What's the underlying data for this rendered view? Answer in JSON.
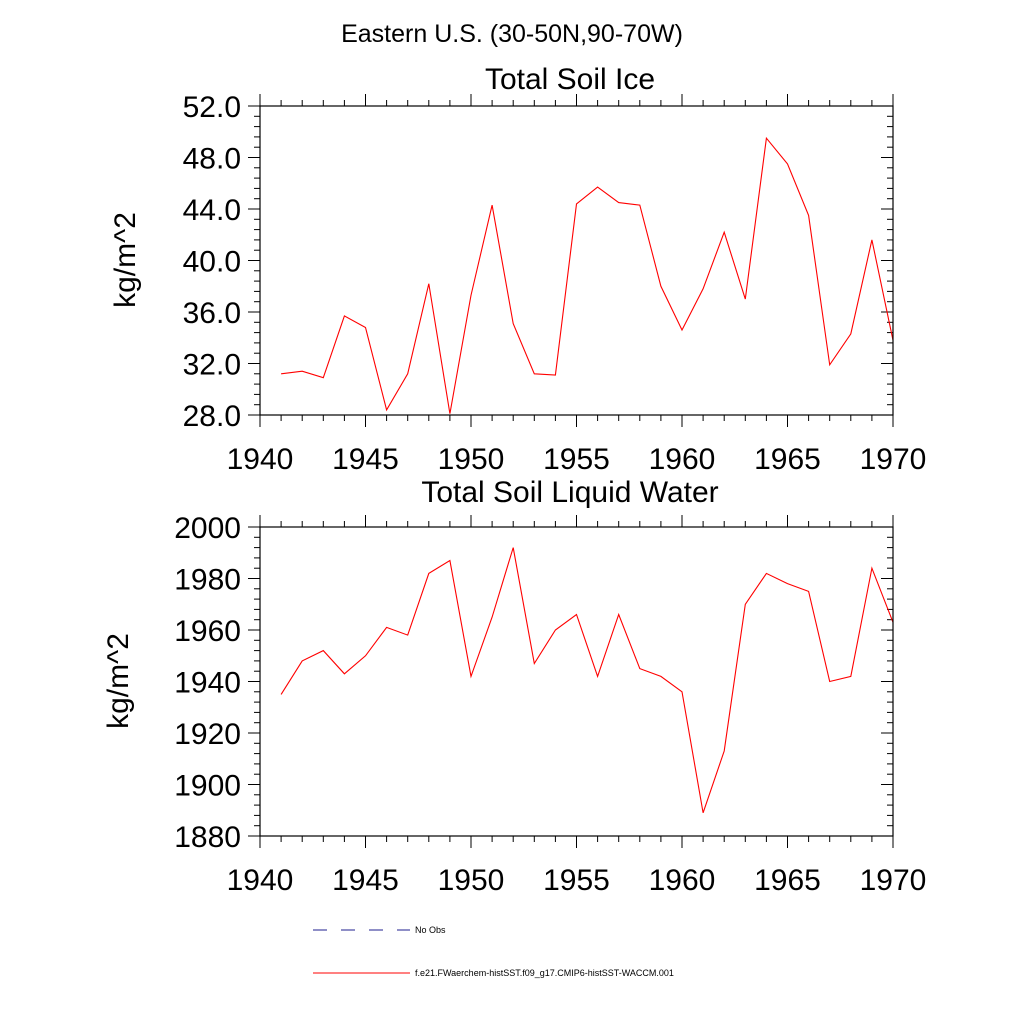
{
  "figure": {
    "title": "Eastern U.S. (30-50N,90-70W)"
  },
  "legend": {
    "items": [
      {
        "label": "No Obs",
        "color": "#1f1f8f",
        "dash": "dashed"
      },
      {
        "label": "f.e21.FWaerchem-histSST.f09_g17.CMIP6-histSST-WACCM.001",
        "color": "#ff0000",
        "dash": "solid"
      }
    ]
  },
  "chart_data": [
    {
      "type": "line",
      "title": "Total Soil Ice",
      "xlabel": "",
      "ylabel": "kg/m^2",
      "xlim": [
        1940,
        1970
      ],
      "ylim": [
        28,
        52
      ],
      "x_ticks": [
        1940,
        1945,
        1950,
        1955,
        1960,
        1965,
        1970
      ],
      "y_ticks": [
        "28.0",
        "32.0",
        "36.0",
        "40.0",
        "44.0",
        "48.0",
        "52.0"
      ],
      "grid": false,
      "x": [
        1941,
        1942,
        1943,
        1944,
        1945,
        1946,
        1947,
        1948,
        1949,
        1950,
        1951,
        1952,
        1953,
        1954,
        1955,
        1956,
        1957,
        1958,
        1959,
        1960,
        1961,
        1962,
        1963,
        1964,
        1965,
        1966,
        1967,
        1968,
        1969,
        1970
      ],
      "series": [
        {
          "color": "#ff0000",
          "values": [
            31.2,
            31.4,
            30.9,
            35.7,
            34.8,
            28.4,
            31.2,
            38.2,
            28.1,
            37.3,
            44.3,
            35.1,
            31.2,
            31.1,
            44.4,
            45.7,
            44.5,
            44.3,
            38.0,
            34.6,
            37.8,
            42.2,
            37.0,
            49.5,
            47.5,
            43.5,
            31.9,
            34.3,
            41.6,
            33.8
          ]
        }
      ]
    },
    {
      "type": "line",
      "title": "Total Soil Liquid Water",
      "xlabel": "",
      "ylabel": "kg/m^2",
      "xlim": [
        1940,
        1970
      ],
      "ylim": [
        1880,
        2000
      ],
      "x_ticks": [
        1940,
        1945,
        1950,
        1955,
        1960,
        1965,
        1970
      ],
      "y_ticks": [
        "1880",
        "1900",
        "1920",
        "1940",
        "1960",
        "1980",
        "2000"
      ],
      "grid": false,
      "x": [
        1941,
        1942,
        1943,
        1944,
        1945,
        1946,
        1947,
        1948,
        1949,
        1950,
        1951,
        1952,
        1953,
        1954,
        1955,
        1956,
        1957,
        1958,
        1959,
        1960,
        1961,
        1962,
        1963,
        1964,
        1965,
        1966,
        1967,
        1968,
        1969,
        1970
      ],
      "series": [
        {
          "color": "#ff0000",
          "values": [
            1935,
            1948,
            1952,
            1943,
            1950,
            1961,
            1958,
            1982,
            1987,
            1942,
            1965,
            1992,
            1947,
            1960,
            1966,
            1942,
            1966,
            1945,
            1942,
            1936,
            1889,
            1913,
            1970,
            1982,
            1978,
            1975,
            1940,
            1942,
            1984,
            1963
          ]
        }
      ]
    }
  ]
}
